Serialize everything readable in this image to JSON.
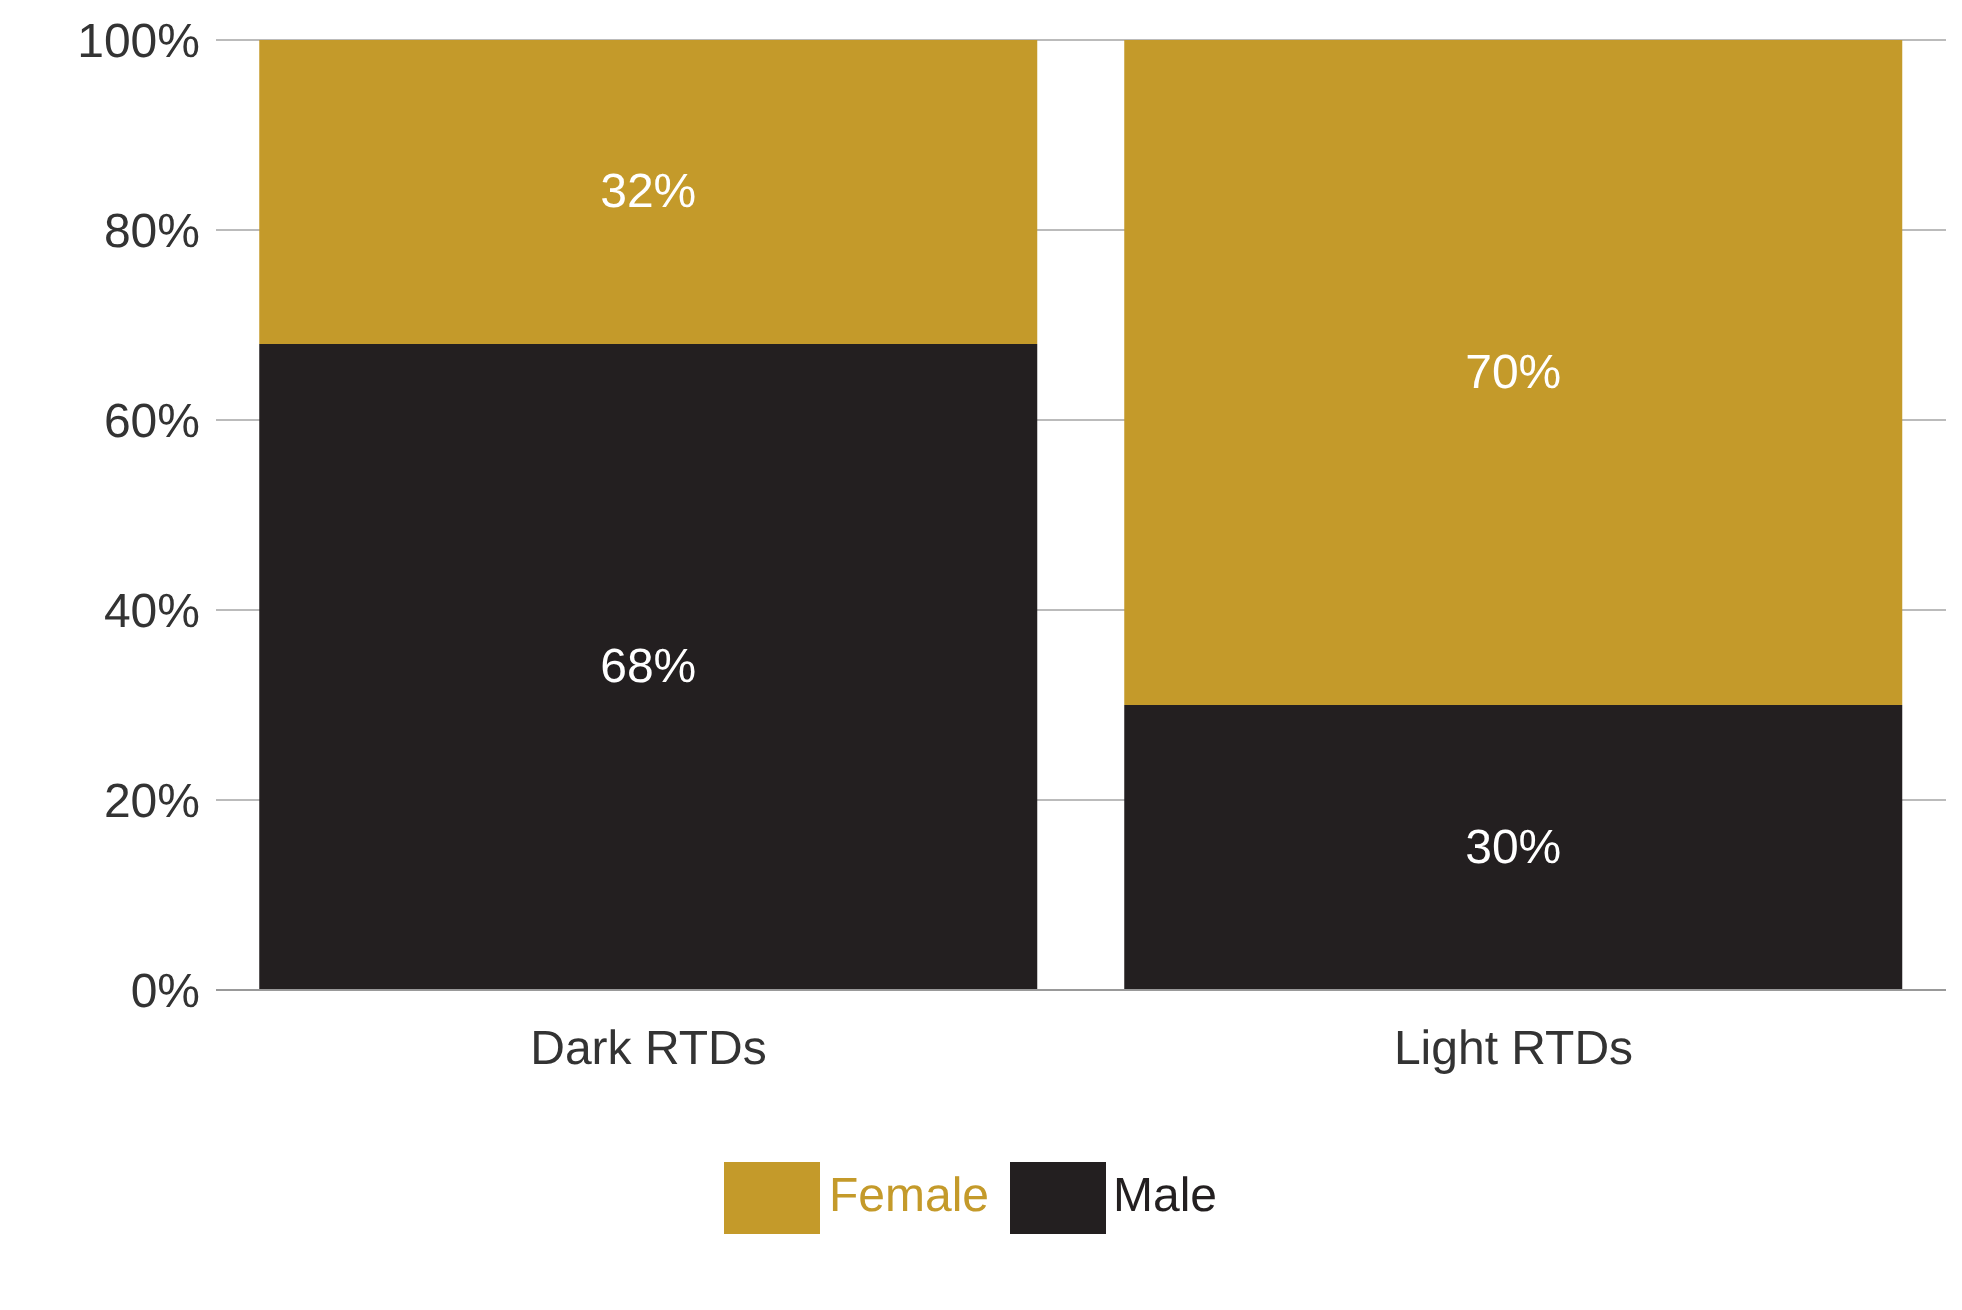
{
  "chart_data": {
    "type": "bar",
    "stacked": true,
    "categories": [
      "Dark RTDs",
      "Light RTDs"
    ],
    "series": [
      {
        "name": "Male",
        "color": "#231f20",
        "values": [
          68,
          30
        ],
        "value_labels": [
          "68%",
          "30%"
        ]
      },
      {
        "name": "Female",
        "color": "#c49a2a",
        "values": [
          32,
          70
        ],
        "value_labels": [
          "32%",
          "70%"
        ]
      }
    ],
    "ylim": [
      0,
      100
    ],
    "yticks": [
      {
        "value": 0,
        "label": "0%"
      },
      {
        "value": 20,
        "label": "20%"
      },
      {
        "value": 40,
        "label": "40%"
      },
      {
        "value": 60,
        "label": "60%"
      },
      {
        "value": 80,
        "label": "80%"
      },
      {
        "value": 100,
        "label": "100%"
      }
    ],
    "grid": "y",
    "legend": "bottom"
  }
}
